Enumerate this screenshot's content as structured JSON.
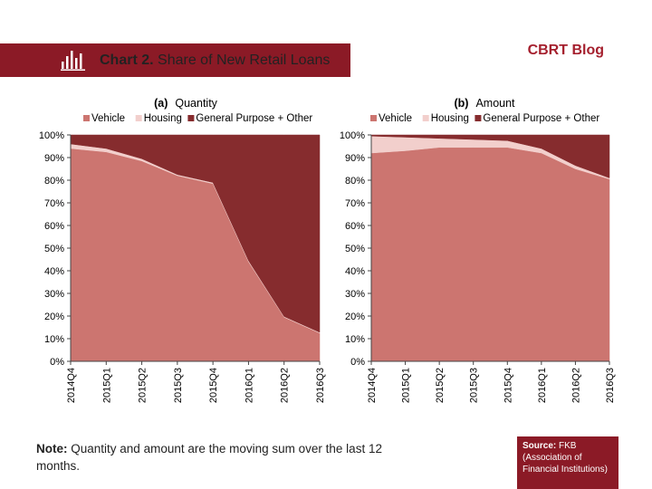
{
  "header": {
    "title_bold": "Chart 2.",
    "title_rest": "Share of New Retail Loans",
    "blog": "CBRT Blog",
    "bar_color": "#8b1a26",
    "icon": "bar-chart-icon"
  },
  "note": {
    "label": "Note:",
    "text": "Quantity and amount are the moving sum over the last 12 months."
  },
  "source": {
    "label": "Source:",
    "text": "FKB (Association of Financial Institutions)"
  },
  "colors": {
    "vehicle": "#cc7570",
    "housing": "#f2cfcc",
    "general": "#862c2e"
  },
  "chart_data": [
    {
      "type": "area",
      "stacked": true,
      "panel_label": "(a)",
      "title": "Quantity",
      "categories": [
        "2014Q4",
        "2015Q1",
        "2015Q2",
        "2015Q3",
        "2015Q4",
        "2016Q1",
        "2016Q2",
        "2016Q3"
      ],
      "series": [
        {
          "name": "Vehicle",
          "values": [
            94,
            92.5,
            88.5,
            82,
            78.5,
            44,
            19.5,
            12.5
          ]
        },
        {
          "name": "Housing",
          "values": [
            2,
            1.5,
            1,
            0.5,
            0.5,
            0.5,
            0.3,
            0.3
          ]
        },
        {
          "name": "General Purpose + Other",
          "values": [
            4,
            6,
            10.5,
            17.5,
            21,
            55.5,
            80.2,
            87.2
          ]
        }
      ],
      "yticks": [
        "0%",
        "10%",
        "20%",
        "30%",
        "40%",
        "50%",
        "60%",
        "70%",
        "80%",
        "90%",
        "100%"
      ],
      "ylim": [
        0,
        100
      ],
      "legend": "top"
    },
    {
      "type": "area",
      "stacked": true,
      "panel_label": "(b)",
      "title": "Amount",
      "categories": [
        "2014Q4",
        "2015Q1",
        "2015Q2",
        "2015Q3",
        "2015Q4",
        "2016Q1",
        "2016Q2",
        "2016Q3"
      ],
      "series": [
        {
          "name": "Vehicle",
          "values": [
            92,
            93,
            94.5,
            94.5,
            94.5,
            92,
            85,
            80.5
          ]
        },
        {
          "name": "Housing",
          "values": [
            7.5,
            6,
            4,
            3.5,
            3,
            2,
            1.5,
            0.5
          ]
        },
        {
          "name": "General Purpose + Other",
          "values": [
            0.5,
            1,
            1.5,
            2,
            2.5,
            6,
            13.5,
            19
          ]
        }
      ],
      "yticks": [
        "0%",
        "10%",
        "20%",
        "30%",
        "40%",
        "50%",
        "60%",
        "70%",
        "80%",
        "90%",
        "100%"
      ],
      "ylim": [
        0,
        100
      ],
      "legend": "top"
    }
  ]
}
